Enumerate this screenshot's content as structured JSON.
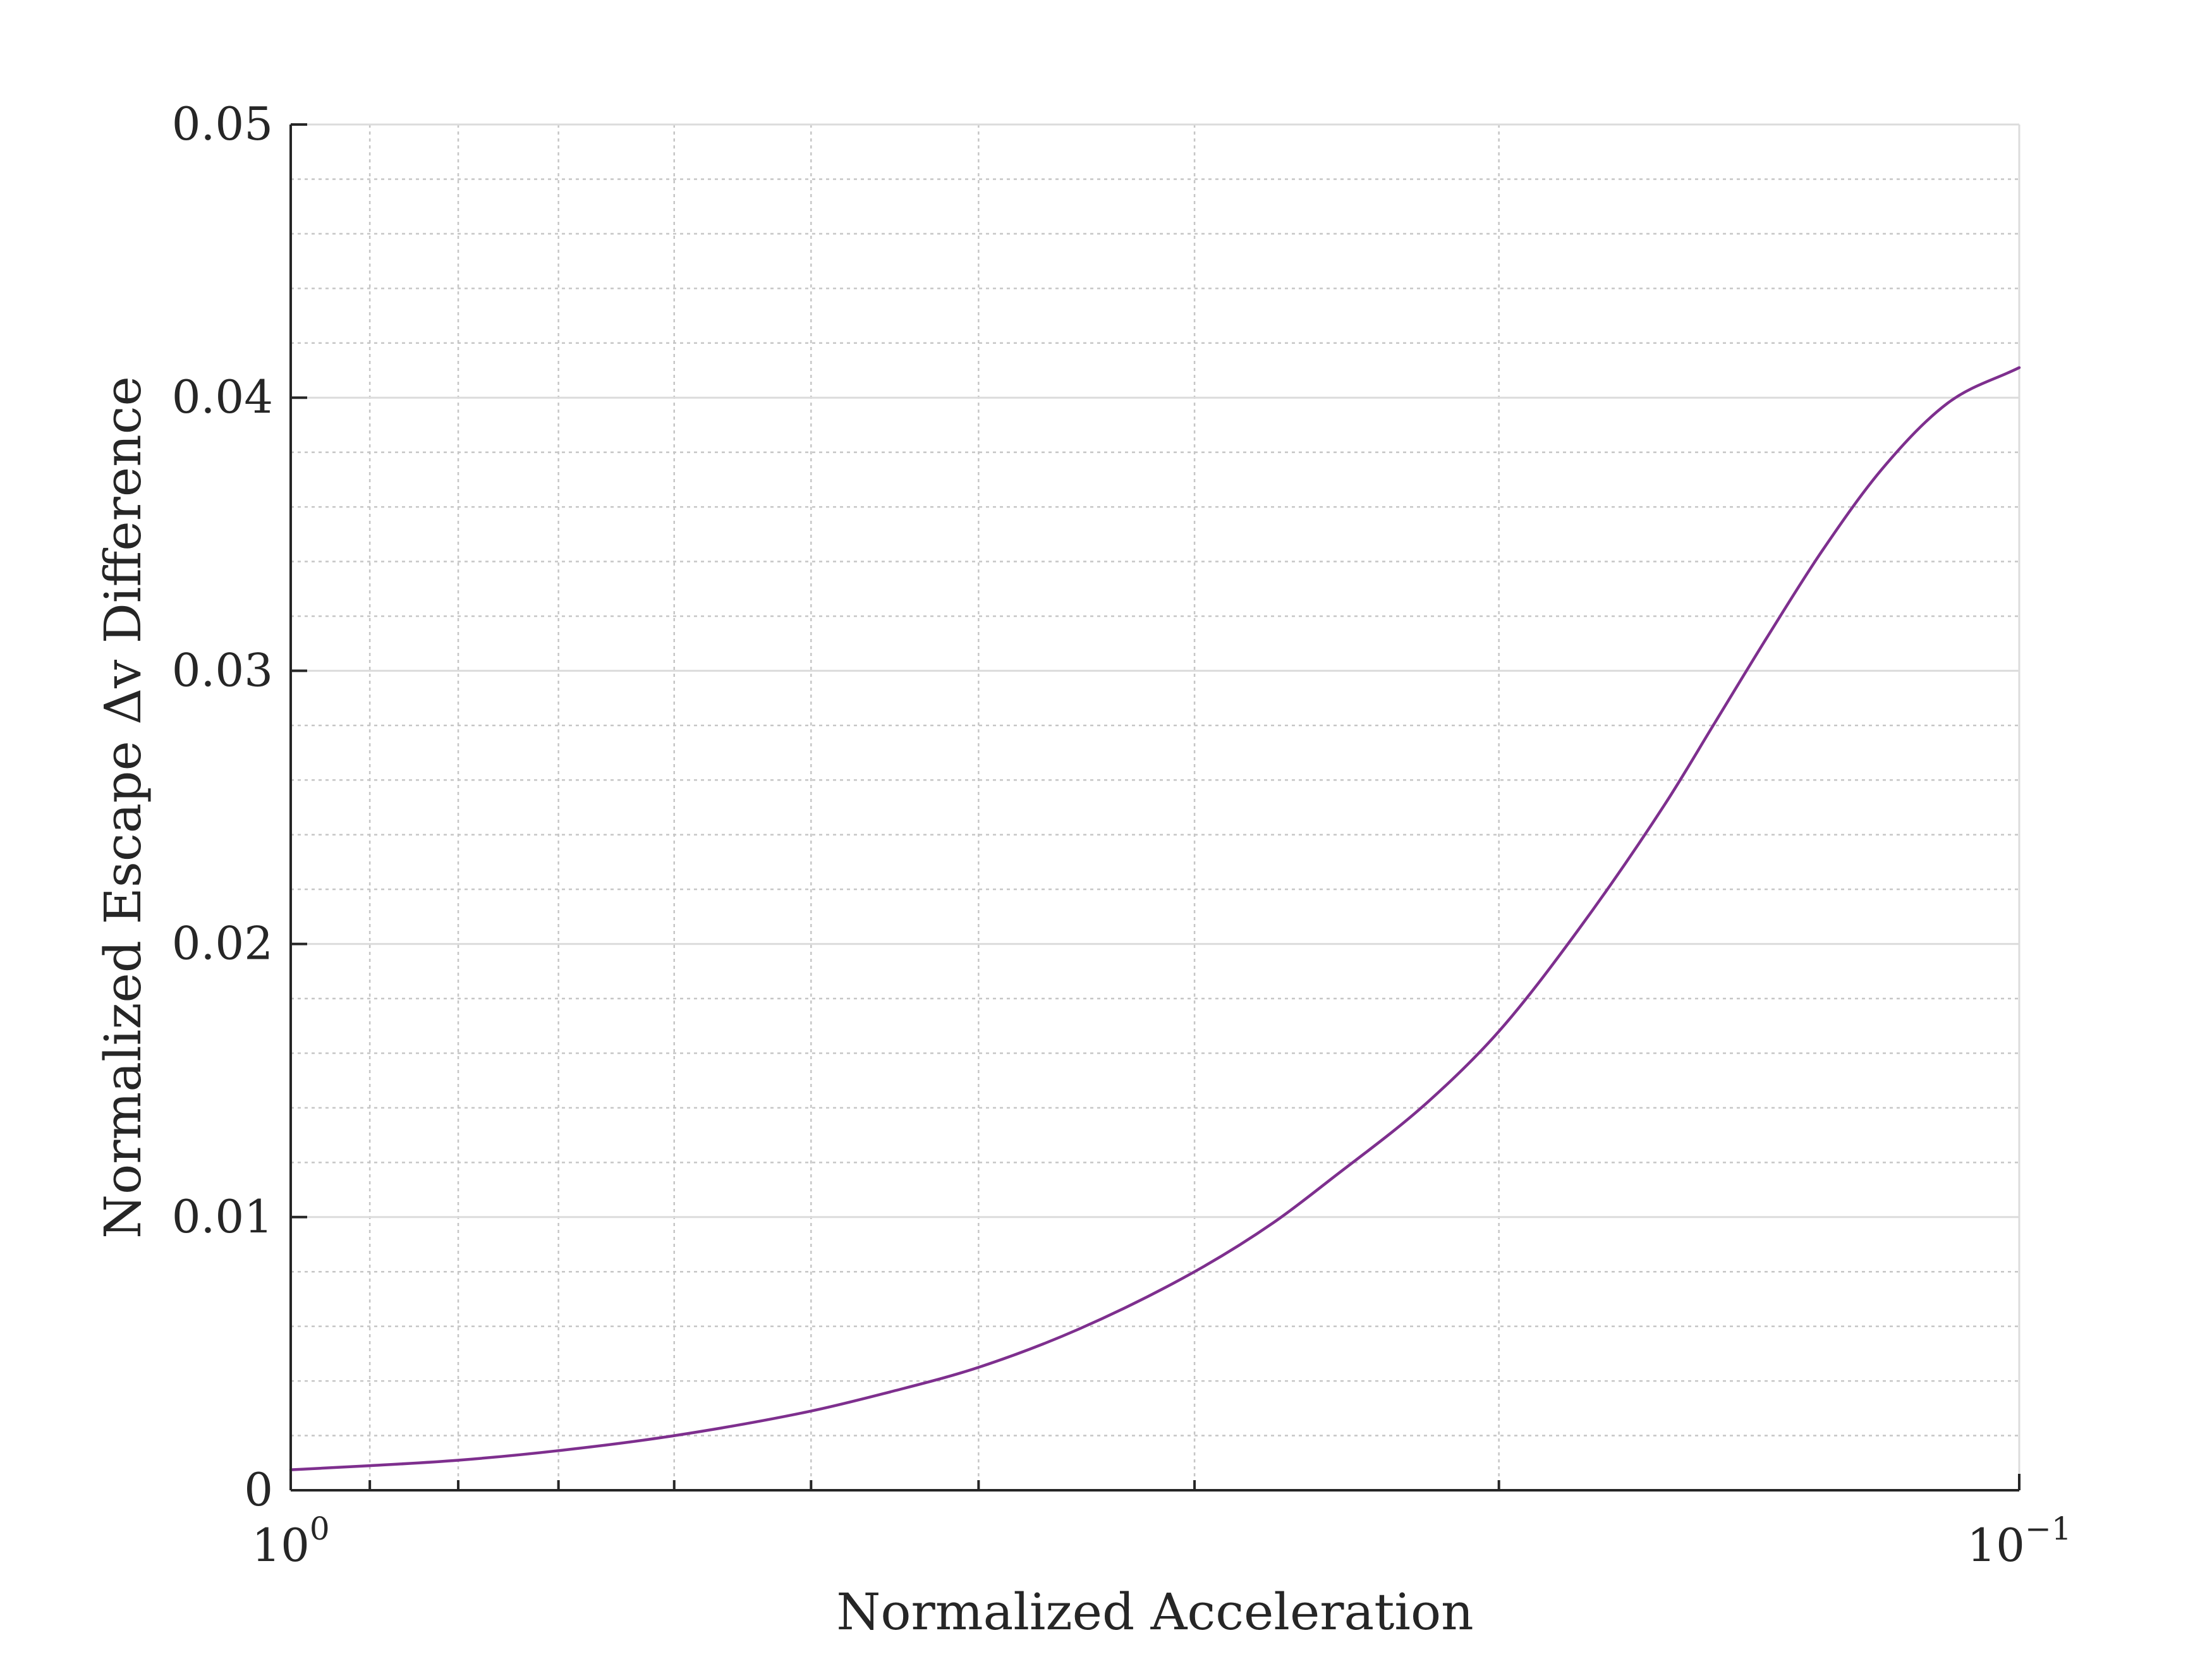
{
  "chart_data": {
    "type": "line",
    "title": "",
    "xlabel": "Normalized Acceleration",
    "ylabel": "Normalized Escape Δv Difference",
    "x_scale": "log",
    "x_reversed": true,
    "xlim": [
      1,
      0.1
    ],
    "ylim": [
      0,
      0.05
    ],
    "grid": true,
    "minor_grid": true,
    "legend": "none",
    "x_ticks": [
      {
        "value": 1,
        "base": "10",
        "exp": "0"
      },
      {
        "value": 0.1,
        "base": "10",
        "exp": "−1"
      }
    ],
    "y_ticks": [
      {
        "value": 0,
        "label": "0"
      },
      {
        "value": 0.01,
        "label": "0.01"
      },
      {
        "value": 0.02,
        "label": "0.02"
      },
      {
        "value": 0.03,
        "label": "0.03"
      },
      {
        "value": 0.04,
        "label": "0.04"
      },
      {
        "value": 0.05,
        "label": "0.05"
      }
    ],
    "x_minor_ticks": [
      0.9,
      0.8,
      0.7,
      0.6,
      0.5,
      0.4,
      0.3,
      0.2
    ],
    "y_minor_ticks": [
      0.002,
      0.004,
      0.006,
      0.008,
      0.012,
      0.014,
      0.016,
      0.018,
      0.022,
      0.024,
      0.026,
      0.028,
      0.032,
      0.034,
      0.036,
      0.038,
      0.042,
      0.044,
      0.046,
      0.048
    ],
    "colors": {
      "series": "#7e2f8e",
      "axis": "#262626"
    },
    "series": [
      {
        "x": [
          1.0,
          0.9,
          0.8,
          0.7,
          0.6,
          0.5,
          0.45,
          0.4,
          0.35,
          0.3,
          0.27,
          0.25,
          0.22,
          0.2,
          0.18,
          0.16,
          0.15,
          0.14,
          0.13,
          0.12,
          0.11,
          0.1
        ],
        "y": [
          0.00075,
          0.0009,
          0.0011,
          0.00145,
          0.002,
          0.0029,
          0.0036,
          0.0045,
          0.0059,
          0.008,
          0.0098,
          0.0114,
          0.0142,
          0.0168,
          0.0205,
          0.0252,
          0.0281,
          0.0312,
          0.0344,
          0.0374,
          0.0398,
          0.0411
        ]
      }
    ]
  }
}
